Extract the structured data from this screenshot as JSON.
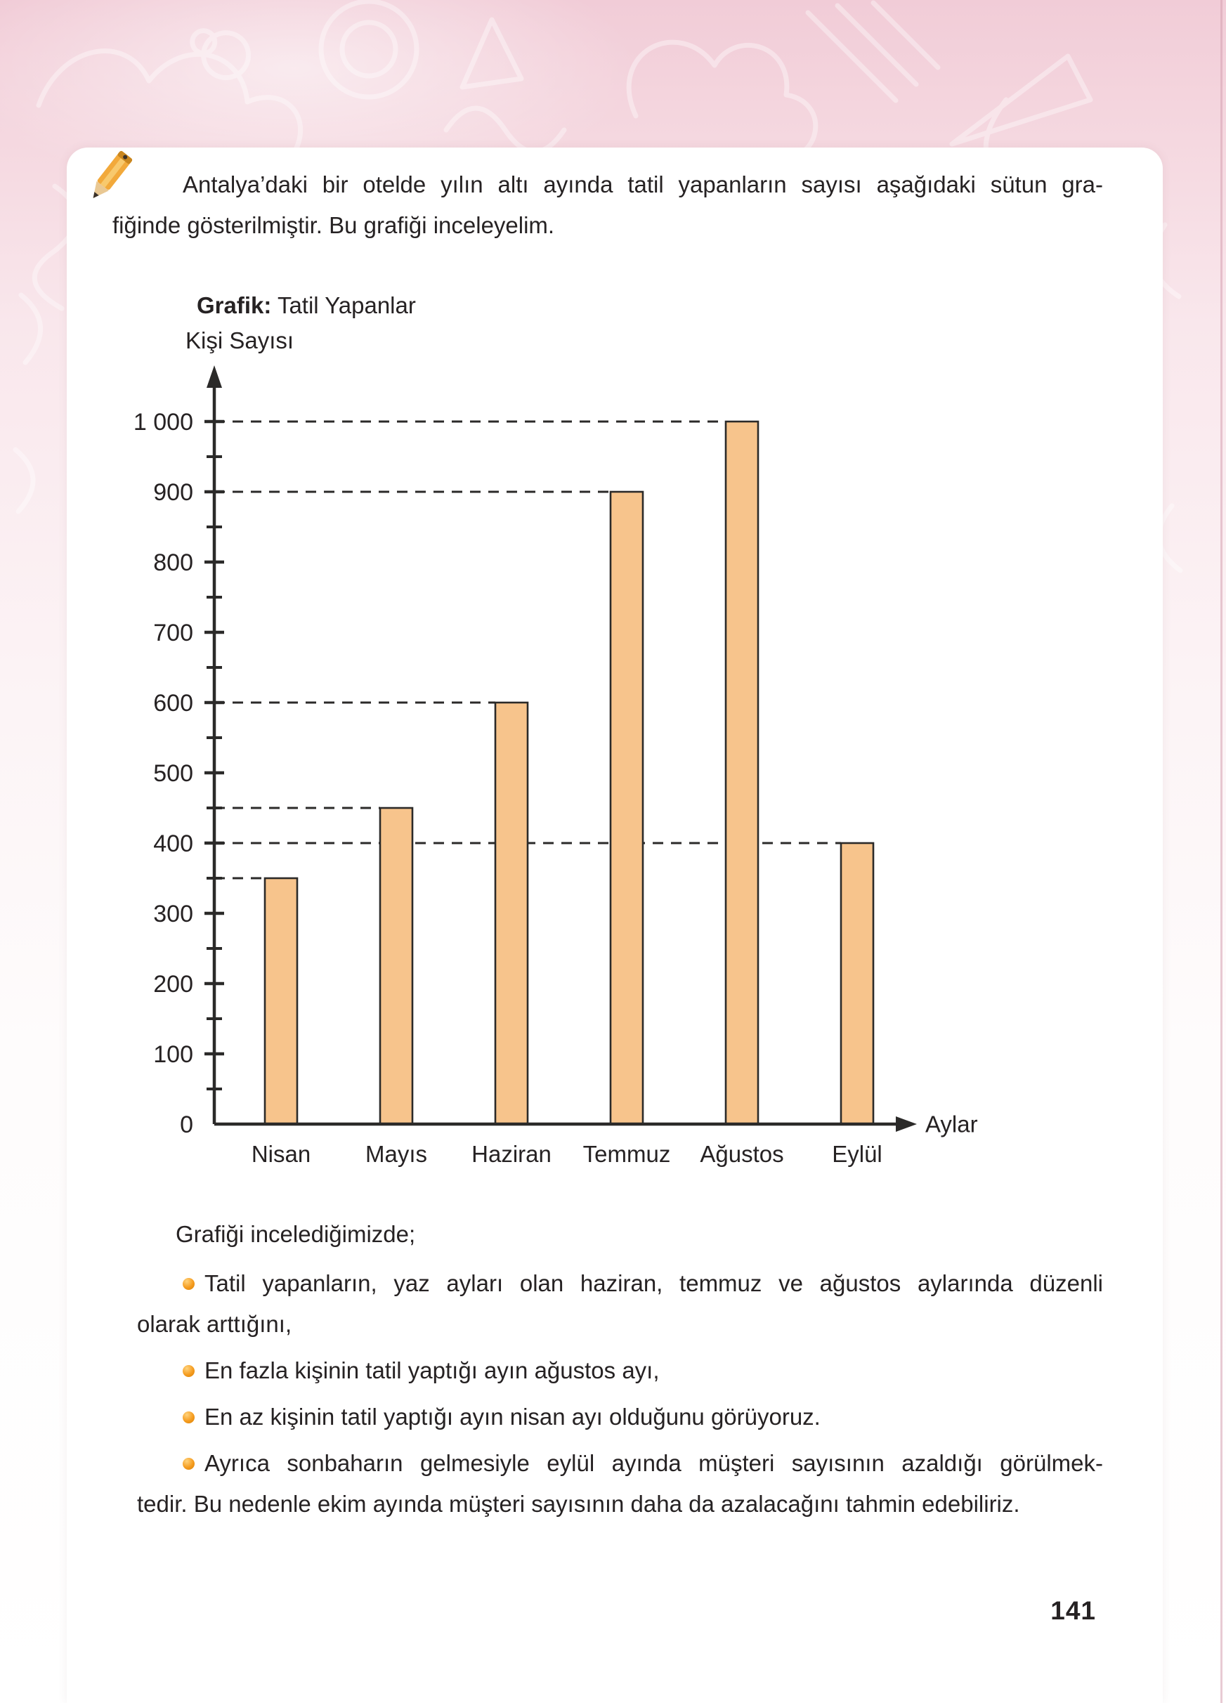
{
  "page_number": "141",
  "intro": {
    "lines": [
      "Antalya’daki bir otelde yılın altı ayında tatil yapanların sayısı aşağıdaki sütun gra-",
      "fiğinde gösterilmiştir. Bu grafiği inceleyelim."
    ]
  },
  "chart_header": {
    "label_bold": "Grafik:",
    "label_rest": " Tatil Yapanlar",
    "y_axis_title": "Kişi Sayısı"
  },
  "chart_data": {
    "type": "bar",
    "title": "Grafik: Tatil Yapanlar",
    "ylabel": "Kişi Sayısı",
    "xlabel": "Aylar",
    "categories": [
      "Nisan",
      "Mayıs",
      "Haziran",
      "Temmuz",
      "Ağustos",
      "Eylül"
    ],
    "values": [
      350,
      450,
      600,
      900,
      1000,
      400
    ],
    "ylim": [
      0,
      1000
    ],
    "y_major_step": 100,
    "y_minor_step": 50,
    "y_tick_labels": [
      "0",
      "100",
      "200",
      "300",
      "400",
      "500",
      "600",
      "700",
      "800",
      "900",
      "1 000"
    ],
    "grid": "dashed horizontal guide from y-axis to the top of each bar",
    "legend": "none",
    "bar_fill": "#f7c48c",
    "bar_stroke": "#2b2a29",
    "axis_color": "#2b2a29"
  },
  "observations": {
    "heading": "Grafiği incelediğimizde;",
    "bullet_color": "#f59c1f",
    "items": [
      {
        "lines": [
          "Tatil yapanların, yaz ayları olan haziran, temmuz ve ağustos aylarında düzenli",
          "olarak arttığını,"
        ]
      },
      {
        "lines": [
          "En fazla kişinin tatil yaptığı ayın ağustos ayı,"
        ]
      },
      {
        "lines": [
          "En az kişinin tatil yaptığı ayın nisan ayı olduğunu görüyoruz."
        ]
      },
      {
        "lines": [
          "Ayrıca sonbaharın gelmesiyle eylül ayında müşteri sayısının azaldığı görülmek-",
          "tedir. Bu nedenle ekim ayında müşteri sayısının daha da azalacağını tahmin edebiliriz."
        ]
      }
    ]
  }
}
